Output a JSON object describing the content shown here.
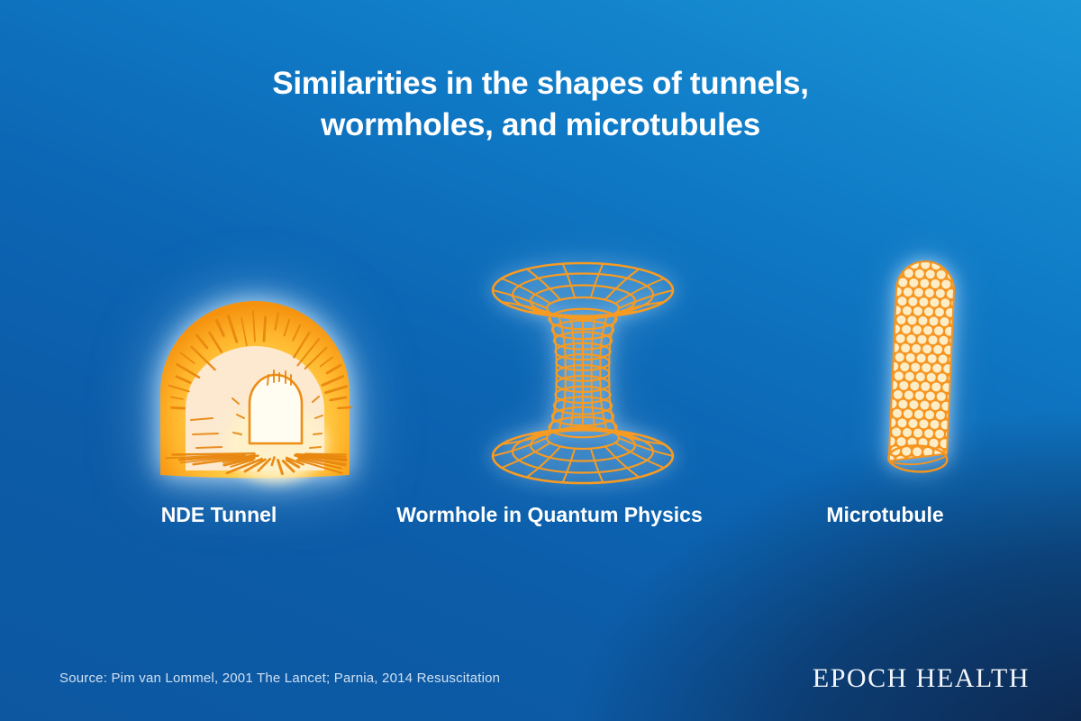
{
  "title": {
    "line1": "Similarities in the shapes of tunnels,",
    "line2": "wormholes, and microtubules"
  },
  "panels": [
    {
      "id": "nde-tunnel",
      "label": "NDE Tunnel",
      "icon": "nde-tunnel-illustration"
    },
    {
      "id": "wormhole",
      "label": "Wormhole in Quantum Physics",
      "icon": "wormhole-illustration"
    },
    {
      "id": "microtubule",
      "label": "Microtubule",
      "icon": "microtubule-illustration"
    }
  ],
  "footer": {
    "source": "Source: Pim van Lommel, 2001 The Lancet; Parnia, 2014 Resuscitation",
    "brand": "EPOCH HEALTH"
  },
  "colors": {
    "background_top": "#1a95d6",
    "background_bottom": "#0d57a0",
    "vignette_navy": "#0d1c3c",
    "accent_orange": "#f79b22",
    "hatch_orange": "#e8860e",
    "tunnel_gold_inner": "#ffdf70",
    "tunnel_gold_outer": "#f5920e",
    "tunnel_cream": "#fce9d0",
    "tunnel_glow": "#fff2c9",
    "opening_white": "#fffdf2",
    "microtubule_dot": "#fdeec8",
    "text_white": "#ffffff",
    "source_text": "#cfe0f2"
  }
}
